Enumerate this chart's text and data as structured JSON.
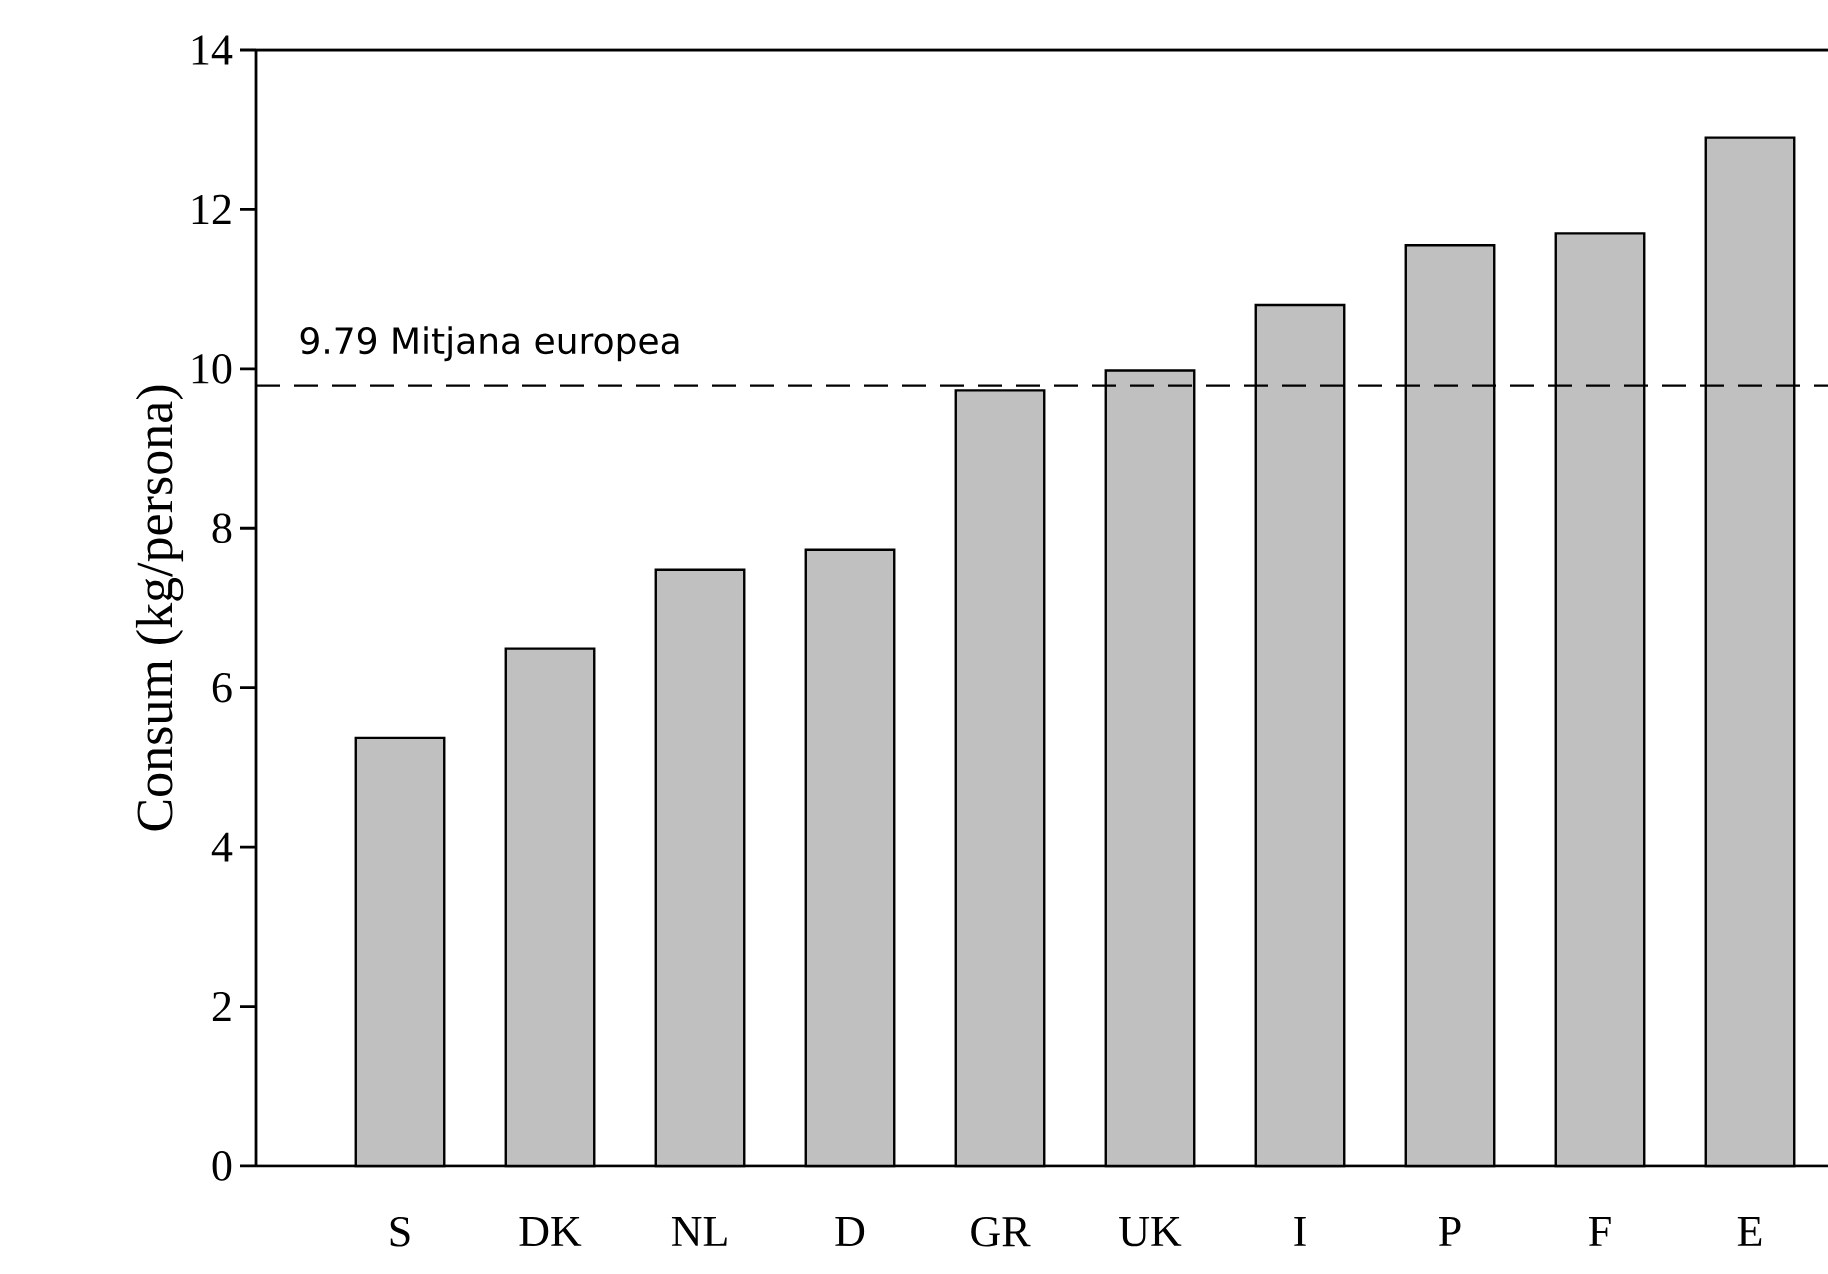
{
  "chart_data": {
    "type": "bar",
    "ylabel": "Consum (kg/persona)",
    "categories": [
      "S",
      "DK",
      "NL",
      "D",
      "GR",
      "UK",
      "I",
      "P",
      "F",
      "E"
    ],
    "values": [
      5.37,
      6.49,
      7.48,
      7.73,
      9.73,
      9.98,
      10.8,
      11.55,
      11.7,
      12.9
    ],
    "color": "#c0c0c0",
    "ylim": [
      0,
      14
    ],
    "yticks": [
      0,
      2,
      4,
      6,
      8,
      10,
      12,
      14
    ],
    "ref_lines": [
      {
        "axis": "y",
        "value": 9.79,
        "label": "9.79 Mitjana europea",
        "line_style": "dashed",
        "color": "#000000"
      }
    ]
  }
}
